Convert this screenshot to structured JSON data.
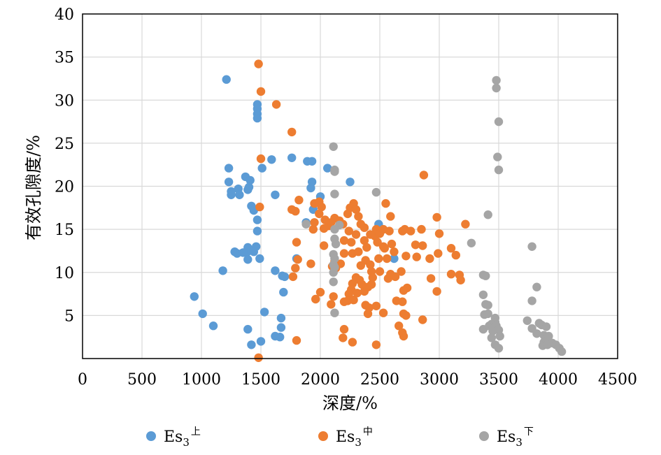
{
  "chart_data": {
    "type": "scatter",
    "xlabel": "深度/%",
    "ylabel": "有效孔隙度/%",
    "xlim": [
      0,
      4500
    ],
    "ylim": [
      0,
      40
    ],
    "x_ticks": [
      "0",
      "500",
      "1000",
      "1500",
      "2000",
      "2500",
      "3000",
      "3500",
      "4000",
      "4500"
    ],
    "y_ticks": [
      "5",
      "10",
      "15",
      "20",
      "25",
      "30",
      "35",
      "40"
    ],
    "grid": true,
    "legend_position": "bottom",
    "series": [
      {
        "name_base": "Es",
        "name_sub": "3",
        "name_sup": "上",
        "color": "#5b9bd5",
        "points": [
          [
            1210,
            32.4
          ],
          [
            1470,
            29.5
          ],
          [
            1470,
            29.0
          ],
          [
            1470,
            28.4
          ],
          [
            1470,
            27.9
          ],
          [
            1230,
            22.1
          ],
          [
            1510,
            22.1
          ],
          [
            1590,
            23.1
          ],
          [
            1760,
            23.3
          ],
          [
            1890,
            22.9
          ],
          [
            1930,
            22.9
          ],
          [
            2060,
            22.1
          ],
          [
            1230,
            20.5
          ],
          [
            1250,
            19.4
          ],
          [
            1250,
            19.0
          ],
          [
            1310,
            19.7
          ],
          [
            1320,
            19.0
          ],
          [
            1370,
            21.1
          ],
          [
            1410,
            20.7
          ],
          [
            1400,
            19.9
          ],
          [
            1390,
            19.6
          ],
          [
            1620,
            19.0
          ],
          [
            1930,
            20.5
          ],
          [
            1920,
            19.8
          ],
          [
            2000,
            18.8
          ],
          [
            2250,
            20.5
          ],
          [
            1420,
            17.7
          ],
          [
            1440,
            17.2
          ],
          [
            1470,
            16.1
          ],
          [
            1470,
            14.8
          ],
          [
            1460,
            13.0
          ],
          [
            1390,
            12.9
          ],
          [
            1380,
            12.3
          ],
          [
            1280,
            12.4
          ],
          [
            1300,
            12.2
          ],
          [
            1350,
            12.3
          ],
          [
            1390,
            11.5
          ],
          [
            1440,
            12.4
          ],
          [
            1490,
            11.6
          ],
          [
            1180,
            10.2
          ],
          [
            1620,
            10.2
          ],
          [
            1680,
            9.6
          ],
          [
            1700,
            9.5
          ],
          [
            1690,
            7.7
          ],
          [
            1800,
            11.6
          ],
          [
            1940,
            17.3
          ],
          [
            1880,
            15.8
          ],
          [
            2490,
            15.6
          ],
          [
            2620,
            11.6
          ],
          [
            940,
            7.2
          ],
          [
            1010,
            5.2
          ],
          [
            1100,
            3.8
          ],
          [
            1390,
            3.4
          ],
          [
            1530,
            5.4
          ],
          [
            1670,
            4.7
          ],
          [
            1670,
            3.6
          ],
          [
            1420,
            1.6
          ],
          [
            1500,
            2.0
          ],
          [
            1620,
            2.6
          ],
          [
            1660,
            2.5
          ]
        ]
      },
      {
        "name_base": "Es",
        "name_sub": "3",
        "name_sup": "中",
        "color": "#ed7d31",
        "points": [
          [
            1480,
            34.2
          ],
          [
            1500,
            31.0
          ],
          [
            1630,
            29.5
          ],
          [
            1760,
            26.3
          ],
          [
            1500,
            23.2
          ],
          [
            2870,
            21.3
          ],
          [
            1490,
            17.6
          ],
          [
            1760,
            17.3
          ],
          [
            1790,
            17.1
          ],
          [
            1820,
            18.4
          ],
          [
            1950,
            18.0
          ],
          [
            1990,
            18.2
          ],
          [
            2010,
            17.6
          ],
          [
            1990,
            16.8
          ],
          [
            2040,
            16.1
          ],
          [
            2070,
            15.4
          ],
          [
            2120,
            16.3
          ],
          [
            2160,
            16.0
          ],
          [
            2190,
            15.6
          ],
          [
            2230,
            16.8
          ],
          [
            2250,
            17.5
          ],
          [
            2280,
            18.0
          ],
          [
            2300,
            17.3
          ],
          [
            2320,
            16.5
          ],
          [
            2340,
            15.6
          ],
          [
            2300,
            14.4
          ],
          [
            2240,
            14.8
          ],
          [
            2200,
            13.7
          ],
          [
            2200,
            12.2
          ],
          [
            2260,
            13.5
          ],
          [
            2270,
            12.2
          ],
          [
            2320,
            12.4
          ],
          [
            2370,
            13.7
          ],
          [
            2390,
            12.9
          ],
          [
            2380,
            11.4
          ],
          [
            2420,
            10.9
          ],
          [
            2430,
            10.1
          ],
          [
            2440,
            9.4
          ],
          [
            2430,
            8.6
          ],
          [
            2400,
            8.3
          ],
          [
            2370,
            7.8
          ],
          [
            2350,
            8.6
          ],
          [
            2330,
            9.1
          ],
          [
            2300,
            9.4
          ],
          [
            2270,
            8.7
          ],
          [
            2260,
            8.0
          ],
          [
            2240,
            7.5
          ],
          [
            2230,
            6.7
          ],
          [
            2200,
            6.6
          ],
          [
            2280,
            6.8
          ],
          [
            2380,
            6.2
          ],
          [
            2410,
            5.9
          ],
          [
            2400,
            5.2
          ],
          [
            2470,
            6.1
          ],
          [
            2500,
            10.1
          ],
          [
            2480,
            13.5
          ],
          [
            2460,
            14.2
          ],
          [
            2470,
            15.0
          ],
          [
            2500,
            14.5
          ],
          [
            2530,
            13.0
          ],
          [
            2550,
            18.0
          ],
          [
            2590,
            16.5
          ],
          [
            2580,
            14.8
          ],
          [
            2600,
            13.3
          ],
          [
            2620,
            12.4
          ],
          [
            2570,
            9.3
          ],
          [
            2590,
            9.8
          ],
          [
            2630,
            9.5
          ],
          [
            2680,
            10.1
          ],
          [
            2720,
            11.9
          ],
          [
            2690,
            14.8
          ],
          [
            2710,
            15.0
          ],
          [
            2760,
            14.8
          ],
          [
            2800,
            13.2
          ],
          [
            2810,
            11.8
          ],
          [
            2860,
            13.1
          ],
          [
            2850,
            15.0
          ],
          [
            2920,
            11.6
          ],
          [
            2980,
            16.4
          ],
          [
            2990,
            12.2
          ],
          [
            3000,
            14.5
          ],
          [
            3100,
            12.8
          ],
          [
            3140,
            12.0
          ],
          [
            3220,
            15.6
          ],
          [
            3170,
            9.7
          ],
          [
            3180,
            9.1
          ],
          [
            3100,
            9.8
          ],
          [
            2930,
            9.3
          ],
          [
            2980,
            7.8
          ],
          [
            2730,
            8.2
          ],
          [
            2700,
            7.9
          ],
          [
            2640,
            6.7
          ],
          [
            2690,
            6.6
          ],
          [
            2660,
            3.8
          ],
          [
            2690,
            3.0
          ],
          [
            2700,
            2.6
          ],
          [
            2700,
            5.2
          ],
          [
            2720,
            5.0
          ],
          [
            2860,
            4.5
          ],
          [
            2530,
            5.3
          ],
          [
            2470,
            1.6
          ],
          [
            2270,
            1.9
          ],
          [
            2200,
            3.4
          ],
          [
            2190,
            2.4
          ],
          [
            1800,
            2.1
          ],
          [
            1480,
            0.1
          ],
          [
            1770,
            9.5
          ],
          [
            1790,
            10.5
          ],
          [
            1810,
            11.5
          ],
          [
            1800,
            13.5
          ],
          [
            1920,
            11.0
          ],
          [
            1960,
            6.9
          ],
          [
            2000,
            7.7
          ],
          [
            2030,
            13.1
          ],
          [
            1940,
            15.0
          ],
          [
            2100,
            10.7
          ],
          [
            2090,
            6.3
          ],
          [
            2130,
            10.5
          ],
          [
            2120,
            11.3
          ],
          [
            2110,
            7.2
          ],
          [
            2170,
            11.0
          ],
          [
            2340,
            10.8
          ],
          [
            2310,
            7.6
          ],
          [
            1950,
            15.8
          ],
          [
            2030,
            15.1
          ],
          [
            2090,
            15.8
          ],
          [
            2370,
            15.2
          ],
          [
            2420,
            14.4
          ],
          [
            2530,
            15.0
          ],
          [
            2560,
            11.6
          ],
          [
            2490,
            11.6
          ],
          [
            2540,
            12.8
          ]
        ]
      },
      {
        "name_base": "Es",
        "name_sub": "3",
        "name_sup": "下",
        "color": "#a5a5a5",
        "points": [
          [
            2110,
            24.6
          ],
          [
            2120,
            21.9
          ],
          [
            2120,
            21.7
          ],
          [
            2120,
            19.1
          ],
          [
            2160,
            15.5
          ],
          [
            2120,
            15.0
          ],
          [
            2120,
            13.9
          ],
          [
            2130,
            13.3
          ],
          [
            2110,
            12.1
          ],
          [
            2120,
            11.6
          ],
          [
            2110,
            10.9
          ],
          [
            2120,
            10.6
          ],
          [
            2110,
            10.0
          ],
          [
            2110,
            8.9
          ],
          [
            2120,
            5.3
          ],
          [
            2470,
            19.3
          ],
          [
            1880,
            15.6
          ],
          [
            3270,
            13.4
          ],
          [
            3410,
            16.7
          ],
          [
            3480,
            32.3
          ],
          [
            3480,
            31.4
          ],
          [
            3500,
            27.5
          ],
          [
            3490,
            23.4
          ],
          [
            3500,
            21.9
          ],
          [
            3780,
            13.0
          ],
          [
            3370,
            9.7
          ],
          [
            3390,
            9.6
          ],
          [
            3370,
            7.4
          ],
          [
            3390,
            6.3
          ],
          [
            3410,
            6.2
          ],
          [
            3380,
            5.1
          ],
          [
            3410,
            5.2
          ],
          [
            3370,
            3.4
          ],
          [
            3420,
            3.8
          ],
          [
            3440,
            4.0
          ],
          [
            3470,
            4.7
          ],
          [
            3470,
            4.2
          ],
          [
            3480,
            3.8
          ],
          [
            3450,
            3.2
          ],
          [
            3500,
            3.3
          ],
          [
            3510,
            2.6
          ],
          [
            3440,
            2.4
          ],
          [
            3470,
            1.6
          ],
          [
            3500,
            1.2
          ],
          [
            3820,
            8.3
          ],
          [
            3780,
            6.7
          ],
          [
            3740,
            4.4
          ],
          [
            3780,
            3.5
          ],
          [
            3840,
            4.1
          ],
          [
            3860,
            3.9
          ],
          [
            3900,
            3.7
          ],
          [
            3820,
            2.9
          ],
          [
            3880,
            2.7
          ],
          [
            3900,
            2.3
          ],
          [
            3920,
            2.6
          ],
          [
            3880,
            1.9
          ],
          [
            3870,
            1.5
          ],
          [
            3910,
            1.6
          ],
          [
            3950,
            1.8
          ],
          [
            3980,
            1.6
          ],
          [
            4010,
            1.2
          ],
          [
            4030,
            0.8
          ]
        ]
      }
    ]
  }
}
